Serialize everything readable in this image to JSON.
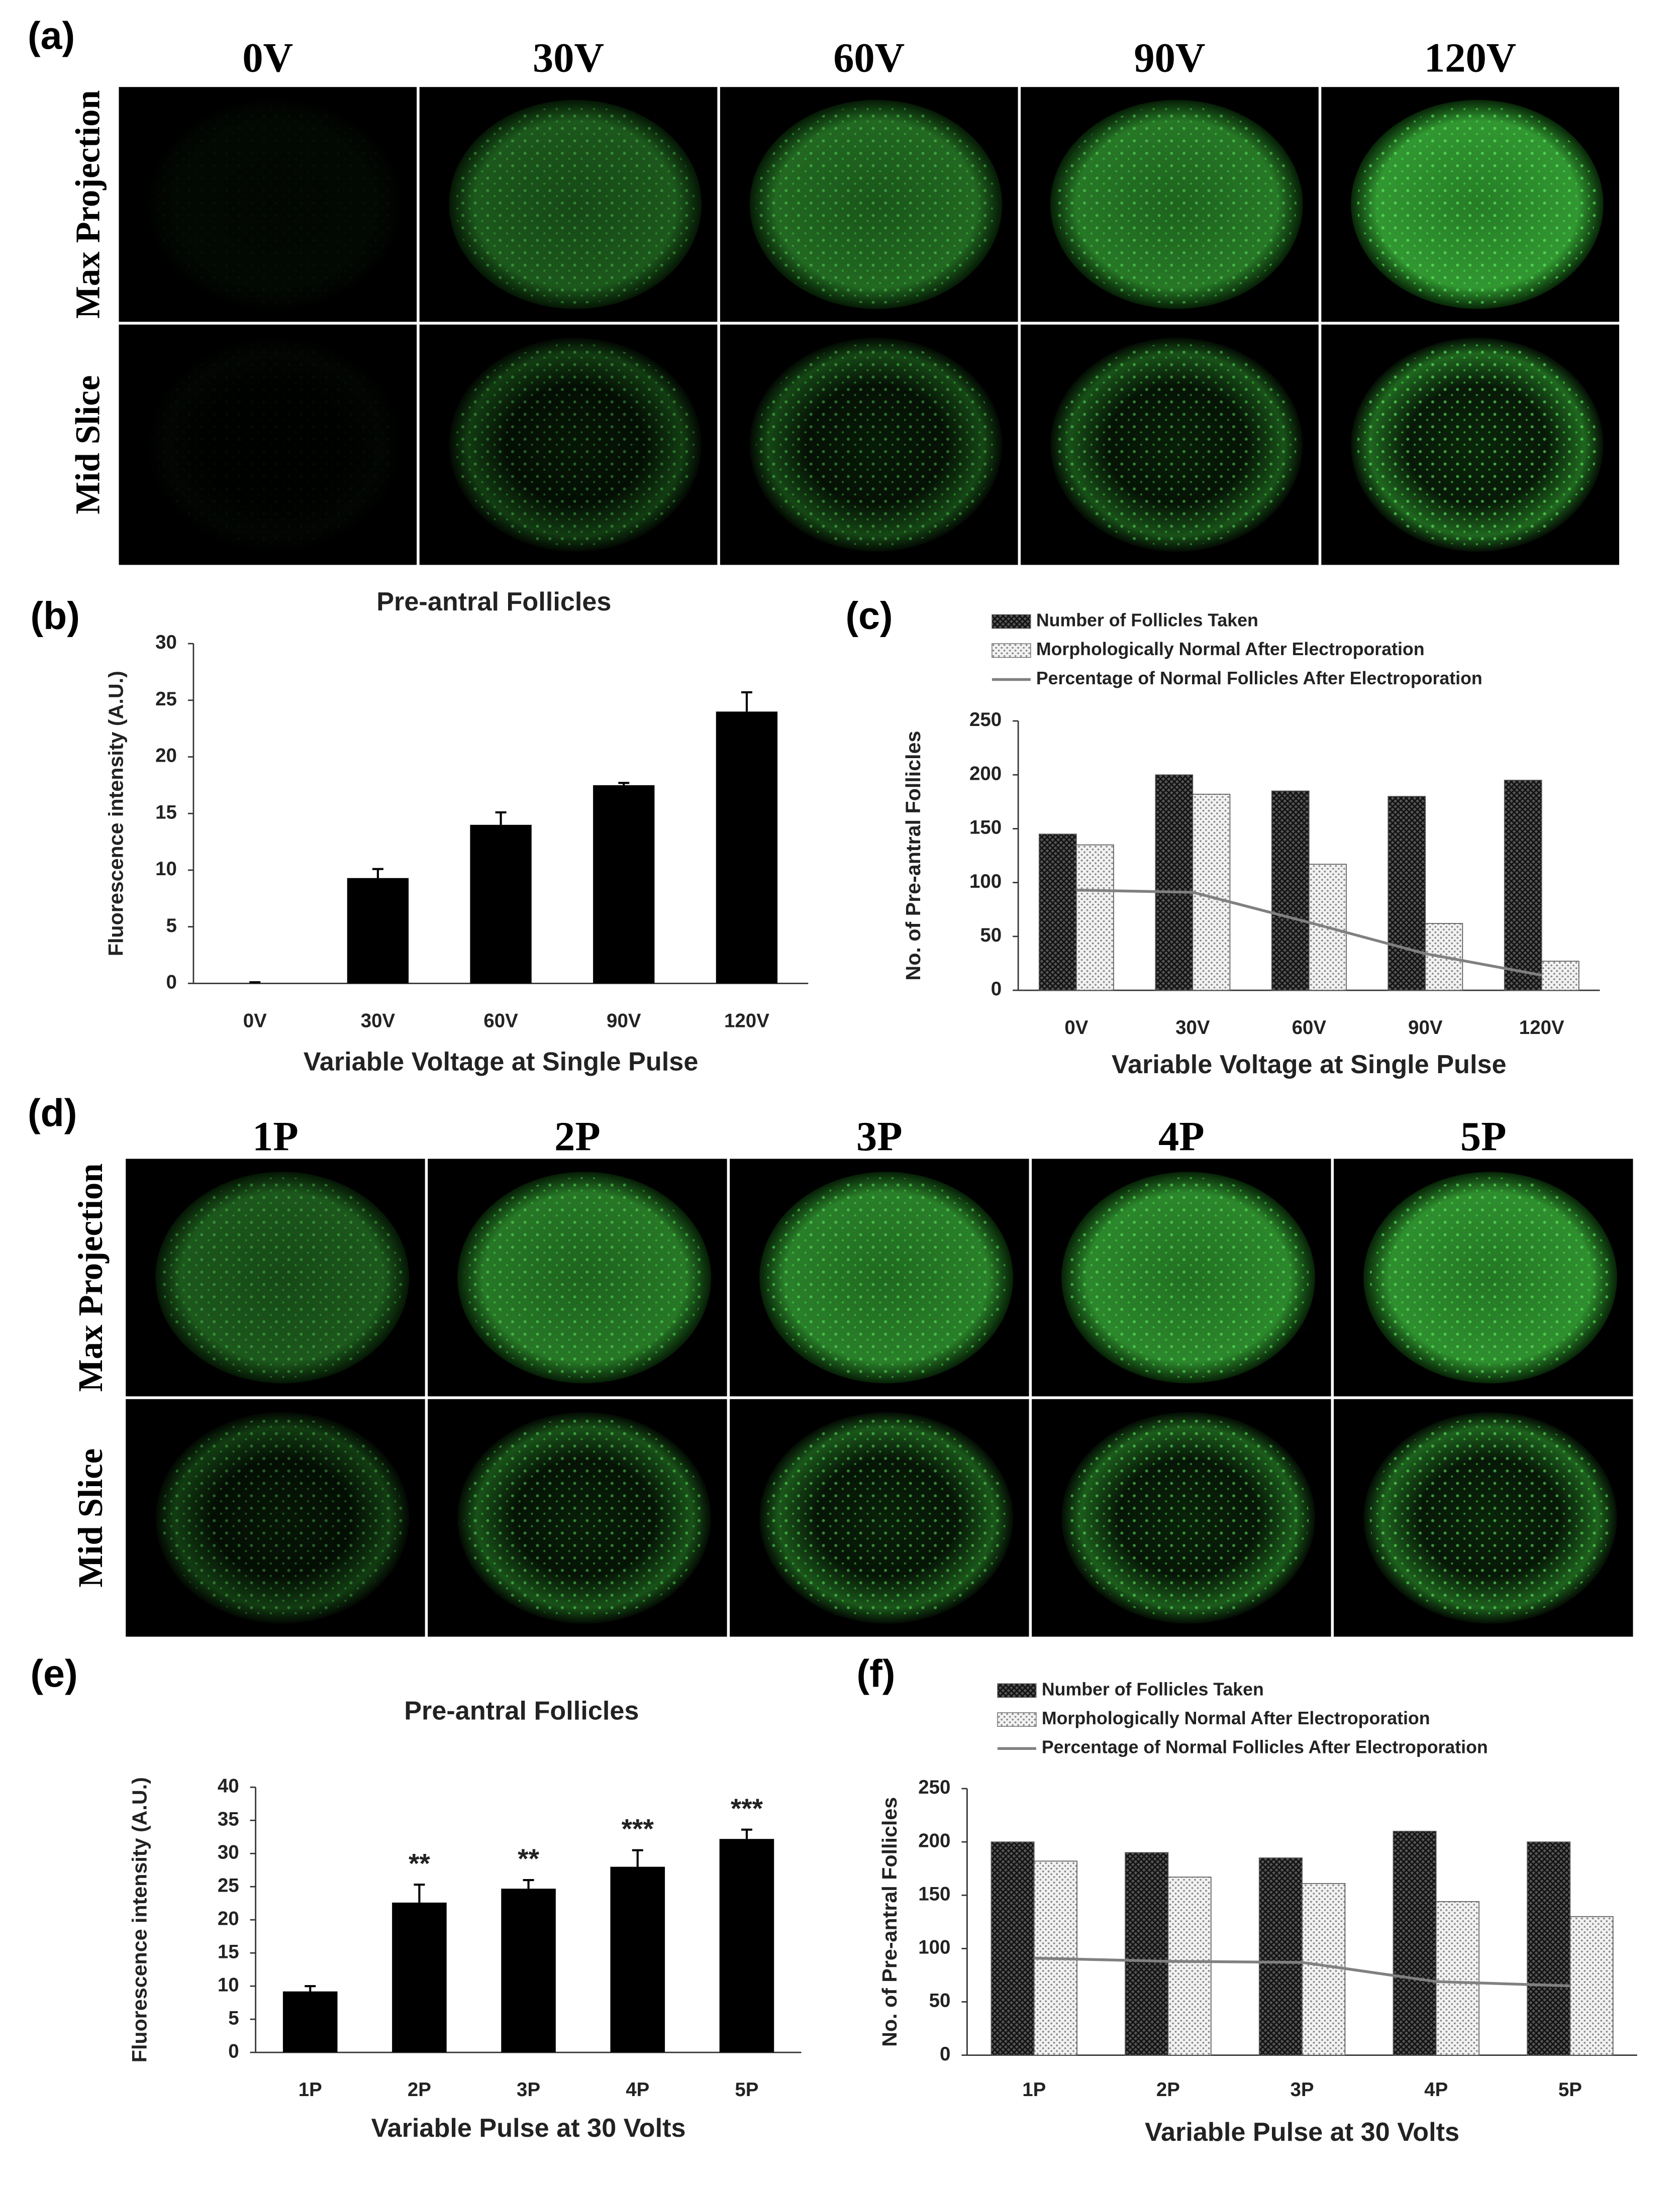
{
  "image_figures": [
    {
      "label": "(a)",
      "columns": [
        "0V",
        "30V",
        "60V",
        "90V",
        "120V"
      ],
      "rows": [
        "Max Projection",
        "Mid Slice"
      ]
    },
    {
      "label": "(d)",
      "columns": [
        "1P",
        "2P",
        "3P",
        "4P",
        "5P"
      ],
      "rows": [
        "Max Projection",
        "Mid Slice"
      ]
    }
  ],
  "chart_data": [
    {
      "type": "bar",
      "label": "(b)",
      "title": "Pre-antral Follicles",
      "x_label": "Variable Voltage at Single Pulse",
      "y_label": "Fluorescence intensity (A.U.)",
      "categories": [
        "0V",
        "30V",
        "60V",
        "90V",
        "120V"
      ],
      "values": [
        0,
        9.3,
        14,
        17.5,
        24
      ],
      "errors": [
        0.1,
        0.8,
        1.1,
        0.2,
        1.7
      ],
      "color": "#000000",
      "ylim": [
        0,
        30
      ],
      "yticks": [
        0,
        5,
        10,
        15,
        20,
        25,
        30
      ]
    },
    {
      "type": "bar",
      "label": "(c)",
      "x_label": "Variable Voltage at Single Pulse",
      "y_label": "No. of Pre-antral Follicles",
      "categories": [
        "0V",
        "30V",
        "60V",
        "90V",
        "120V"
      ],
      "series": [
        {
          "name": "Number of Follicles Taken",
          "color": "#444444",
          "values": [
            145,
            200,
            185,
            180,
            195
          ]
        },
        {
          "name": "Morphologically Normal After Electroporation",
          "color": "#dddddd",
          "values": [
            135,
            182,
            117,
            62,
            27
          ]
        },
        {
          "name": "Percentage of Normal Follicles After Electroporation",
          "color": "#808080",
          "mark": "line",
          "values": [
            93,
            91,
            63,
            34,
            14
          ]
        }
      ],
      "ylim": [
        0,
        250
      ],
      "yticks": [
        0,
        50,
        100,
        150,
        200,
        250
      ]
    },
    {
      "type": "bar",
      "label": "(e)",
      "title": "Pre-antral Follicles",
      "x_label": "Variable Pulse at 30 Volts",
      "y_label": "Fluorescence intensity (A.U.)",
      "categories": [
        "1P",
        "2P",
        "3P",
        "4P",
        "5P"
      ],
      "values": [
        9.2,
        22.6,
        24.7,
        28,
        32.2
      ],
      "errors": [
        0.8,
        2.7,
        1.3,
        2.5,
        1.4
      ],
      "annotations": [
        null,
        "**",
        "**",
        "***",
        "***"
      ],
      "color": "#000000",
      "ylim": [
        0,
        40
      ],
      "yticks": [
        0,
        5,
        10,
        15,
        20,
        25,
        30,
        35,
        40
      ]
    },
    {
      "type": "bar",
      "label": "(f)",
      "x_label": "Variable Pulse at 30 Volts",
      "y_label": "No. of Pre-antral Follicles",
      "categories": [
        "1P",
        "2P",
        "3P",
        "4P",
        "5P"
      ],
      "series": [
        {
          "name": "Number of Follicles Taken",
          "color": "#444444",
          "values": [
            200,
            190,
            185,
            210,
            200
          ]
        },
        {
          "name": "Morphologically Normal After Electroporation",
          "color": "#dddddd",
          "values": [
            182,
            167,
            161,
            144,
            130
          ]
        },
        {
          "name": "Percentage of Normal Follicles After Electroporation",
          "color": "#808080",
          "mark": "line",
          "values": [
            91,
            88,
            87,
            69,
            65
          ]
        }
      ],
      "ylim": [
        0,
        250
      ],
      "yticks": [
        0,
        50,
        100,
        150,
        200,
        250
      ]
    }
  ]
}
